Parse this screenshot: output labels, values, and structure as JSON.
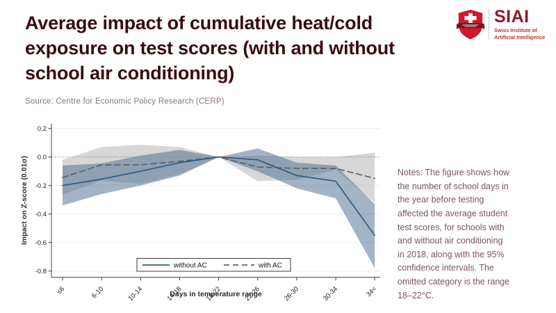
{
  "header": {
    "title": "Average impact of cumulative heat/cold\nexposure on test scores (with and without\nschool air conditioning)",
    "source": "Source: Centre for Economic Policy Research (CERP)"
  },
  "logo": {
    "acronym": "SIAI",
    "subtitle": "Swiss Institute of\nArtificial Intelligence",
    "shield_color": "#ce1a2b",
    "banner_color": "#7f1020",
    "text_color": "#8e1a28",
    "subtitle_color": "#c62f2f"
  },
  "notes": {
    "text": "Notes: The figure shows how\nthe number of school days in\nthe year before testing\naffected the average student\ntest scores, for schools with\nand without air conditioning\nin 2018, along with the 95%\nconfidence intervals. The\nomitted category is the range\n18–22°C."
  },
  "chart_data": {
    "type": "line",
    "xlabel": "Days in temperature range",
    "ylabel": "Impact on Z-score (0.01σ)",
    "categories": [
      "≤6",
      "6-10",
      "10-14",
      "14-18",
      "18-22",
      "22-26",
      "26-30",
      "30-34",
      "34<"
    ],
    "yticks": [
      0.2,
      0.0,
      -0.2,
      -0.4,
      -0.6,
      -0.8
    ],
    "ylim": [
      -0.8,
      0.25
    ],
    "reference_line_y": 0,
    "grid": true,
    "legend_position": "bottom-center-inside",
    "colors": {
      "grid": "#e7edf0",
      "zero_line": "#9a9a9a",
      "axis": "#3c3c3c"
    },
    "series": [
      {
        "name": "without AC",
        "style": "solid",
        "color": "#2f5a80",
        "band_color": "rgba(70,105,140,0.5)",
        "values": [
          -0.2,
          -0.155,
          -0.1,
          -0.04,
          0,
          -0.02,
          -0.13,
          -0.17,
          -0.55
        ],
        "ci_upper": [
          -0.06,
          -0.045,
          0.01,
          0.05,
          0,
          0.06,
          -0.04,
          -0.06,
          -0.33
        ],
        "ci_lower": [
          -0.34,
          -0.26,
          -0.2,
          -0.13,
          0,
          -0.1,
          -0.22,
          -0.29,
          -0.78
        ]
      },
      {
        "name": "with AC",
        "style": "dashed",
        "color": "#5c6166",
        "band_color": "rgba(130,130,130,0.32)",
        "values": [
          -0.145,
          -0.055,
          -0.055,
          -0.03,
          0,
          -0.07,
          -0.08,
          -0.08,
          -0.15
        ],
        "ci_upper": [
          -0.02,
          0.07,
          0.085,
          0.07,
          0,
          0.01,
          0.0,
          0.0,
          0.03
        ],
        "ci_lower": [
          -0.265,
          -0.165,
          -0.19,
          -0.12,
          0,
          -0.17,
          -0.16,
          -0.09,
          -0.32
        ]
      }
    ]
  }
}
